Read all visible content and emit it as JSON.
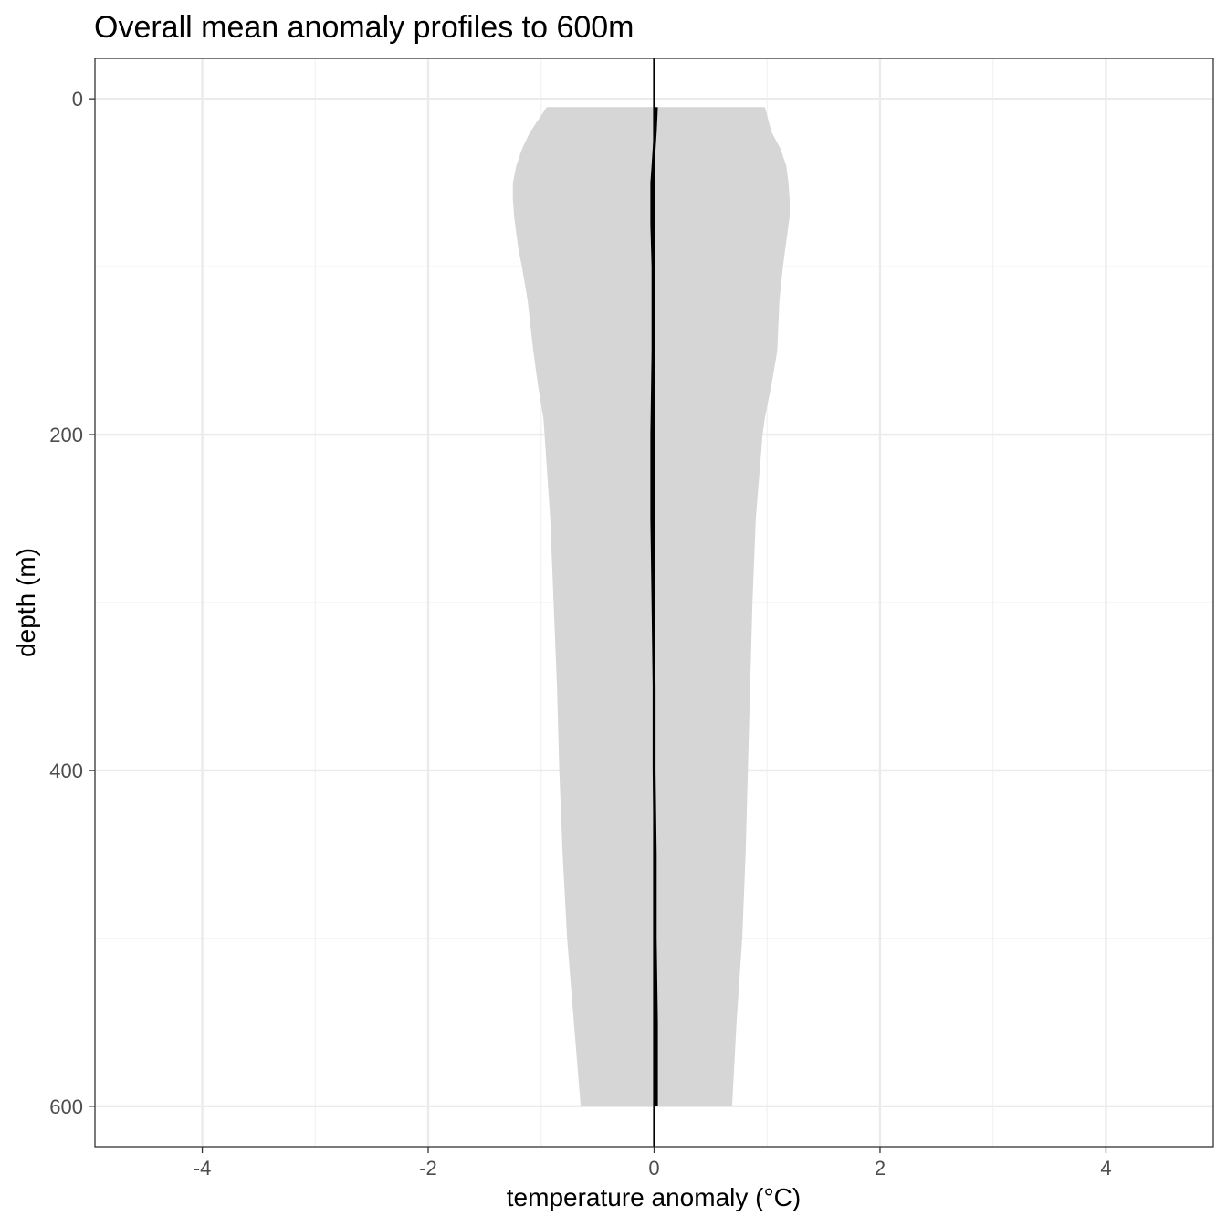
{
  "chart_data": {
    "type": "line",
    "title": "Overall mean anomaly profiles to 600m",
    "xlabel": "temperature anomaly (°C)",
    "ylabel": "depth (m)",
    "xlim": [
      -4.95,
      4.95
    ],
    "ylim": [
      624,
      -24
    ],
    "y_reversed": true,
    "grid": true,
    "x_ticks": [
      -4,
      -2,
      0,
      2,
      4
    ],
    "x_tick_labels": [
      "-4",
      "-2",
      "0",
      "2",
      "4"
    ],
    "y_ticks": [
      0,
      200,
      400,
      600
    ],
    "y_tick_labels": [
      "0",
      "200",
      "400",
      "600"
    ],
    "vline_x": 0,
    "series": [
      {
        "kind": "ribbon",
        "color": "#d6d6d6",
        "depth": [
          5,
          20,
          30,
          40,
          50,
          60,
          70,
          80,
          90,
          100,
          120,
          150,
          170,
          190,
          200,
          250,
          300,
          350,
          400,
          450,
          500,
          550,
          600
        ],
        "lower": [
          -0.95,
          -1.1,
          -1.17,
          -1.22,
          -1.25,
          -1.25,
          -1.24,
          -1.22,
          -1.2,
          -1.17,
          -1.12,
          -1.07,
          -1.03,
          -0.98,
          -0.97,
          -0.92,
          -0.89,
          -0.86,
          -0.84,
          -0.81,
          -0.77,
          -0.71,
          -0.65
        ],
        "upper": [
          0.98,
          1.04,
          1.12,
          1.17,
          1.19,
          1.2,
          1.2,
          1.18,
          1.16,
          1.14,
          1.11,
          1.09,
          1.04,
          0.98,
          0.96,
          0.9,
          0.87,
          0.85,
          0.83,
          0.81,
          0.78,
          0.73,
          0.69
        ]
      },
      {
        "kind": "line",
        "color": "#000000",
        "depth": [
          5,
          20,
          30,
          40,
          50,
          75,
          100,
          150,
          200,
          250,
          300,
          350,
          400,
          450,
          500,
          550,
          600
        ],
        "values": [
          0.02,
          0.01,
          0.0,
          -0.01,
          -0.02,
          -0.02,
          -0.01,
          -0.01,
          -0.02,
          -0.02,
          -0.01,
          0.0,
          0.0,
          0.01,
          0.01,
          0.02,
          0.02
        ]
      }
    ]
  }
}
